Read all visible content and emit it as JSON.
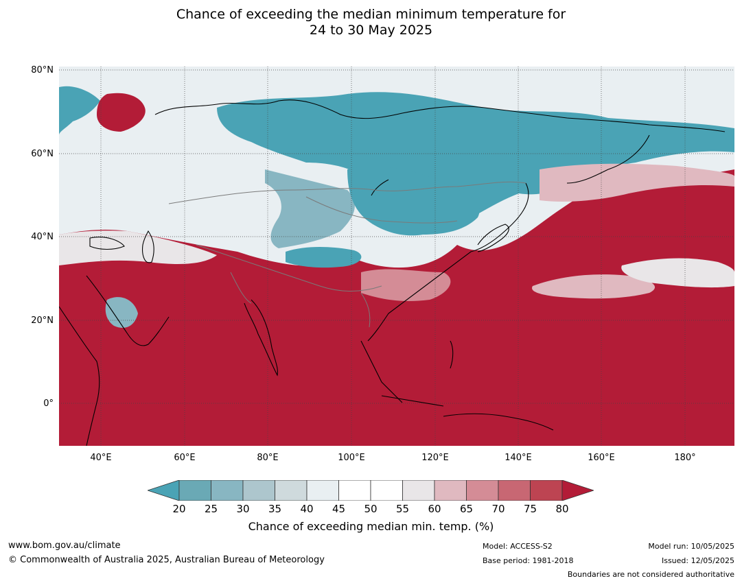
{
  "title_line1": "Chance of exceeding the median minimum temperature for",
  "title_line2": "24 to 30 May 2025",
  "lat_labels": [
    "80°N",
    "60°N",
    "40°N",
    "20°N",
    "0°"
  ],
  "lon_labels": [
    "40°E",
    "60°E",
    "80°E",
    "100°E",
    "120°E",
    "140°E",
    "160°E",
    "180°"
  ],
  "colorbar": {
    "ticks": [
      "20",
      "25",
      "30",
      "35",
      "40",
      "45",
      "50",
      "55",
      "60",
      "65",
      "70",
      "75",
      "80"
    ],
    "colors": [
      "#4aa3b5",
      "#6aa9b5",
      "#88b6c2",
      "#adc6cd",
      "#cfdadd",
      "#e9eff2",
      "#ffffff",
      "#ffffff",
      "#e9e6e8",
      "#e0b9c0",
      "#d48c96",
      "#c86773",
      "#bd4452",
      "#b31c37"
    ],
    "label": "Chance of exceeding median min. temp. (%)"
  },
  "footer": {
    "url": "www.bom.gov.au/climate",
    "copyright": "© Commonwealth of Australia 2025, Australian Bureau of Meteorology",
    "model": "Model: ACCESS-S2",
    "base_period": "Base period: 1981-2018",
    "model_run": "Model run: 10/05/2025",
    "issued": "Issued: 12/05/2025",
    "boundaries_note": "Boundaries are not considered authoritative"
  },
  "map_colors": {
    "warm": "#b31c37",
    "warm_mid": "#d48c96",
    "warm_light": "#e0b9c0",
    "neutral": "#ffffff",
    "cool_light": "#cfdadd",
    "cool_mid": "#88b6c2",
    "cool": "#4aa3b5"
  }
}
